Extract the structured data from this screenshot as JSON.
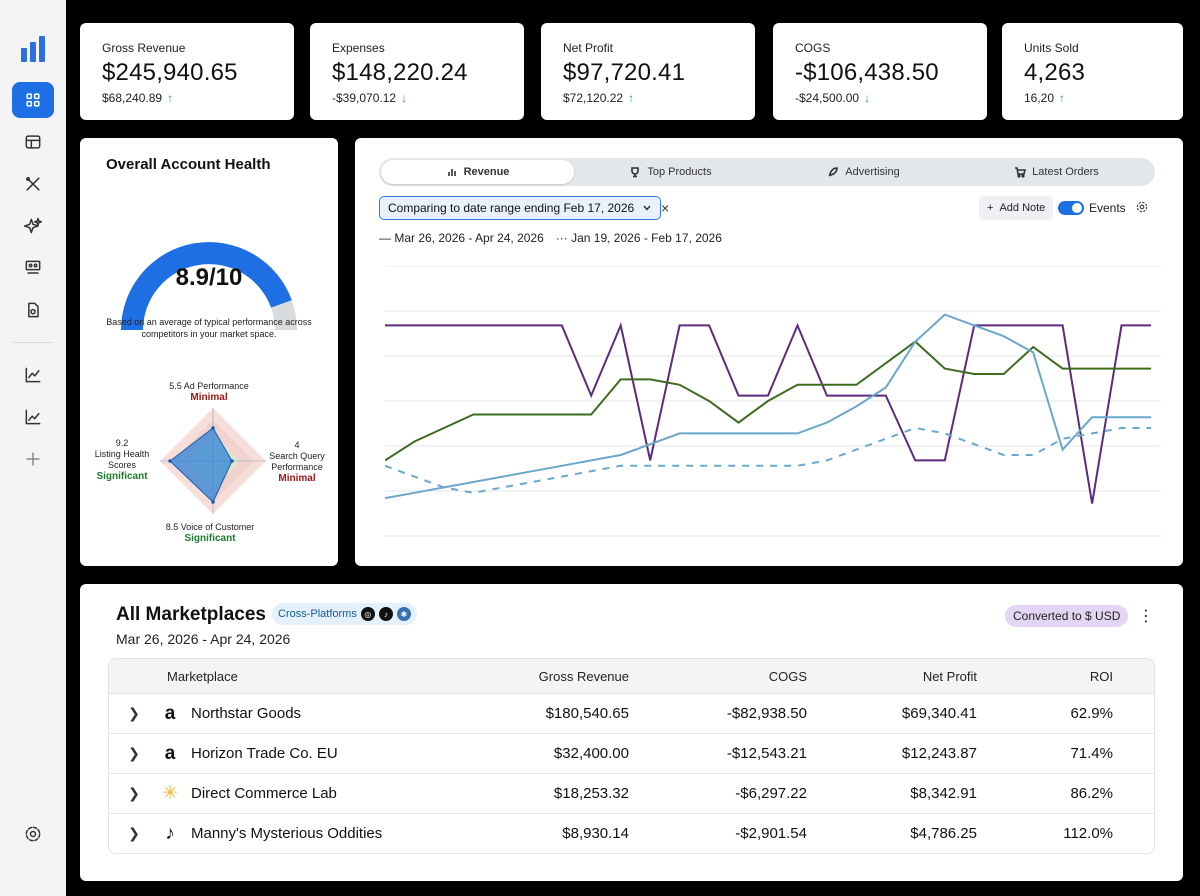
{
  "kpis": [
    {
      "label": "Gross Revenue",
      "value": "$245,940.65",
      "delta": "$68,240.89",
      "direction": "up"
    },
    {
      "label": "Expenses",
      "value": "$148,220.24",
      "delta": "-$39,070.12",
      "direction": "down"
    },
    {
      "label": "Net Profit",
      "value": "$97,720.41",
      "delta": "$72,120.22",
      "direction": "up"
    },
    {
      "label": "COGS",
      "value": "-$106,438.50",
      "delta": "-$24,500.00",
      "direction": "down"
    },
    {
      "label": "Units Sold",
      "value": "4,263",
      "delta": "16,20",
      "direction": "up"
    }
  ],
  "health": {
    "title": "Overall Account Health",
    "score": "8.9/10",
    "score_fraction": 0.89,
    "note": "Based on an average of typical performance across competitors in your market space.",
    "metrics": {
      "ad": {
        "value": "5.5",
        "label": "Ad Performance",
        "status": "Minimal"
      },
      "listing": {
        "value": "9.2",
        "label_line1": "Listing Health",
        "label_line2": "Scores",
        "status": "Significant"
      },
      "search": {
        "value": "4",
        "label_line1": "Search Query",
        "label_line2": "Performance",
        "status": "Minimal"
      },
      "voice": {
        "value": "8.5",
        "label": "Voice of Customer",
        "status": "Significant"
      }
    }
  },
  "chart_panel": {
    "tabs": [
      "Revenue",
      "Top Products",
      "Advertising",
      "Latest Orders"
    ],
    "active_tab": "Revenue",
    "compare_label": "Comparing to date range ending Feb 17, 2026",
    "close_glyph": "×",
    "add_note_label": "Add Note",
    "events_label": "Events",
    "legend": [
      "Mar 26, 2026 - Apr 24, 2026",
      "Jan 19, 2026 - Feb 17, 2026"
    ]
  },
  "chart_data": {
    "type": "line",
    "x": [
      0,
      1,
      2,
      3,
      4,
      5,
      6,
      7,
      8,
      9,
      10,
      11,
      12,
      13,
      14,
      15,
      16,
      17,
      18,
      19,
      20,
      21,
      22,
      23,
      24,
      25,
      26
    ],
    "ylim": [
      0,
      100
    ],
    "grid": true,
    "series": [
      {
        "color": "#5c2a7e",
        "style": "solid",
        "values": [
          78,
          78,
          78,
          78,
          78,
          78,
          78,
          52,
          78,
          28,
          78,
          78,
          52,
          52,
          78,
          52,
          52,
          52,
          28,
          28,
          78,
          78,
          78,
          78,
          12,
          78,
          78
        ]
      },
      {
        "color": "#3f6b1f",
        "style": "solid",
        "values": [
          28,
          35,
          40,
          45,
          45,
          45,
          45,
          45,
          58,
          58,
          56,
          50,
          42,
          50,
          56,
          56,
          56,
          64,
          72,
          62,
          60,
          60,
          70,
          62,
          62,
          62,
          62
        ]
      },
      {
        "color": "#6aa8cb",
        "style": "solid",
        "values": [
          14,
          16,
          18,
          20,
          22,
          24,
          26,
          28,
          30,
          34,
          38,
          38,
          38,
          38,
          38,
          42,
          48,
          55,
          72,
          82,
          78,
          74,
          68,
          32,
          44,
          44,
          44
        ]
      },
      {
        "color": "#6aa8cb",
        "style": "dashed",
        "values": [
          26,
          22,
          18,
          16,
          18,
          20,
          22,
          24,
          26,
          26,
          26,
          26,
          26,
          26,
          26,
          28,
          32,
          36,
          40,
          38,
          34,
          30,
          30,
          36,
          38,
          40,
          40
        ]
      }
    ]
  },
  "marketplaces": {
    "title": "All Marketplaces",
    "badge": "Cross-Platforms",
    "range": "Mar 26, 2026 - Apr 24, 2026",
    "converted": "Converted to $ USD",
    "columns": [
      "Marketplace",
      "Gross Revenue",
      "COGS",
      "Net Profit",
      "ROI"
    ],
    "rows": [
      {
        "name": "Northstar Goods",
        "logo": "amazon-logo-icon",
        "gross": "$180,540.65",
        "cogs": "-$82,938.50",
        "net": "$69,340.41",
        "roi": "62.9%"
      },
      {
        "name": "Horizon Trade Co. EU",
        "logo": "amazon-logo-icon",
        "gross": "$32,400.00",
        "cogs": "-$12,543.21",
        "net": "$12,243.87",
        "roi": "71.4%"
      },
      {
        "name": "Direct Commerce Lab",
        "logo": "walmart-spark-icon",
        "gross": "$18,253.32",
        "cogs": "-$6,297.22",
        "net": "$8,342.91",
        "roi": "86.2%"
      },
      {
        "name": "Manny's Mysterious Oddities",
        "logo": "tiktok-logo-icon",
        "gross": "$8,930.14",
        "cogs": "-$2,901.54",
        "net": "$4,786.25",
        "roi": "112.0%"
      }
    ]
  },
  "colors": {
    "accent": "#1f6fe4",
    "positive": "#2f9e58",
    "minimal": "#a01818",
    "significant": "#1d7a2e"
  }
}
